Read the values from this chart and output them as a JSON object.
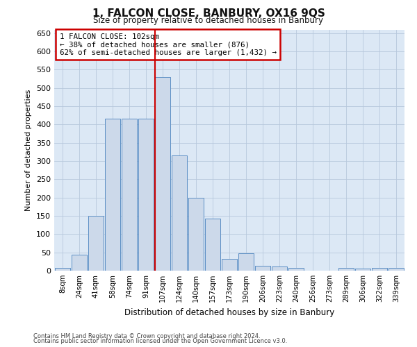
{
  "title1": "1, FALCON CLOSE, BANBURY, OX16 9QS",
  "title2": "Size of property relative to detached houses in Banbury",
  "xlabel": "Distribution of detached houses by size in Banbury",
  "ylabel": "Number of detached properties",
  "categories": [
    "8sqm",
    "24sqm",
    "41sqm",
    "58sqm",
    "74sqm",
    "91sqm",
    "107sqm",
    "124sqm",
    "140sqm",
    "157sqm",
    "173sqm",
    "190sqm",
    "206sqm",
    "223sqm",
    "240sqm",
    "256sqm",
    "273sqm",
    "289sqm",
    "306sqm",
    "322sqm",
    "339sqm"
  ],
  "values": [
    8,
    44,
    150,
    415,
    415,
    415,
    530,
    315,
    200,
    142,
    33,
    47,
    14,
    12,
    8,
    0,
    0,
    7,
    5,
    7,
    7
  ],
  "bar_color": "#ccd9ea",
  "bar_edge_color": "#5b8ec4",
  "vline_x_index": 6,
  "vline_color": "#cc0000",
  "annotation_text": "1 FALCON CLOSE: 102sqm\n← 38% of detached houses are smaller (876)\n62% of semi-detached houses are larger (1,432) →",
  "annotation_box_color": "#ffffff",
  "annotation_box_edge": "#cc0000",
  "ylim": [
    0,
    660
  ],
  "yticks": [
    0,
    50,
    100,
    150,
    200,
    250,
    300,
    350,
    400,
    450,
    500,
    550,
    600,
    650
  ],
  "footer1": "Contains HM Land Registry data © Crown copyright and database right 2024.",
  "footer2": "Contains public sector information licensed under the Open Government Licence v3.0.",
  "fig_bg_color": "#ffffff",
  "plot_bg_color": "#dce8f5"
}
